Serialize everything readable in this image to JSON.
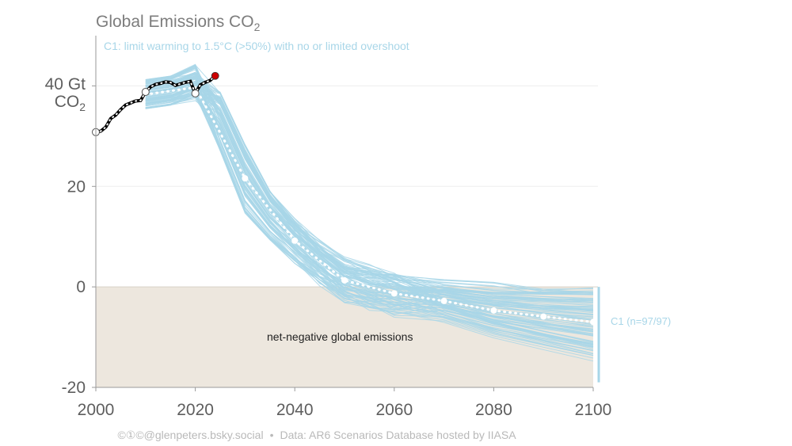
{
  "chart_data": {
    "type": "line",
    "title_main": "Global Emissions CO",
    "title_sub": "2",
    "subtitle": "C1: limit warming to 1.5°C (>50%) with no or limited overshoot",
    "ylabel_line1": "40 Gt",
    "ylabel_line2_main": "CO",
    "ylabel_line2_sub": "2",
    "xlim": [
      2000,
      2100
    ],
    "ylim": [
      -20,
      50
    ],
    "xticks": [
      2000,
      2020,
      2040,
      2060,
      2080,
      2100
    ],
    "yticks": [
      {
        "value": 20,
        "label": "20"
      },
      {
        "value": 0,
        "label": "0"
      },
      {
        "value": -20,
        "label": "-20"
      }
    ],
    "grid": true,
    "negative_region_label": "net-negative global emissions",
    "range_label": "C1 (n=97/97)",
    "scenario_range": [
      -19,
      0
    ],
    "colors": {
      "historical": "#000000",
      "scenarios": "#a8d6e8",
      "median": "#ffffff",
      "negative_shade": "#ede7de",
      "latest_point": "#cc0000"
    },
    "historical": {
      "x": [
        2000,
        2001,
        2002,
        2003,
        2004,
        2005,
        2006,
        2007,
        2008,
        2009,
        2010,
        2011,
        2012,
        2013,
        2014,
        2015,
        2016,
        2017,
        2018,
        2019,
        2020,
        2021,
        2022,
        2023,
        2024
      ],
      "y": [
        30.8,
        31.0,
        31.8,
        33.5,
        34.2,
        35.3,
        36.2,
        36.6,
        37.0,
        37.1,
        38.8,
        39.8,
        40.3,
        40.5,
        40.8,
        40.7,
        40.1,
        40.4,
        40.7,
        40.9,
        38.5,
        40.2,
        40.7,
        41.1,
        42.0
      ]
    },
    "historical_markers": [
      2000,
      2010,
      2020
    ],
    "latest_point": {
      "x": 2024,
      "y": 42.0
    },
    "median": {
      "x": [
        2010,
        2020,
        2030,
        2040,
        2050,
        2060,
        2070,
        2080,
        2090,
        2100
      ],
      "y": [
        38.3,
        39.7,
        21.6,
        9.2,
        1.3,
        -1.3,
        -2.8,
        -4.7,
        -5.9,
        -7.0
      ]
    },
    "scenario_count": 97
  },
  "footer": {
    "handle": "©①©@glenpeters.bsky.social",
    "source": "Data: AR6 Scenarios Database hosted by IIASA"
  }
}
